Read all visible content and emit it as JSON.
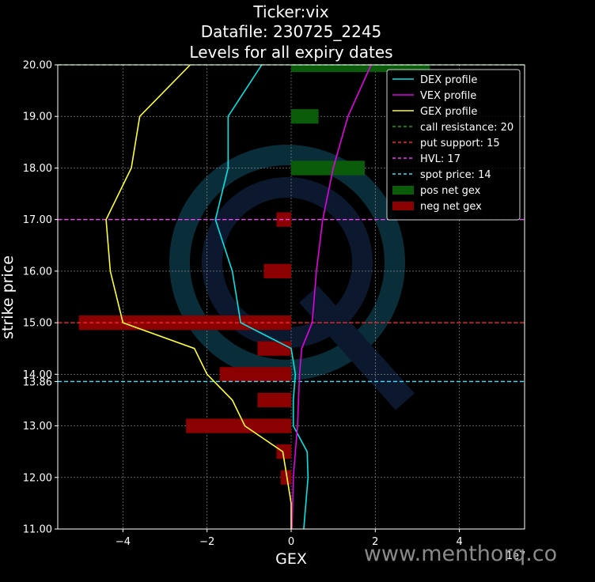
{
  "chart_data": {
    "type": "line",
    "title_lines": [
      "Ticker:vix",
      "Datafile: 230725_2245",
      "Levels for all expiry dates"
    ],
    "xlabel": "GEX",
    "ylabel": "strike price",
    "x_offset_label": "1e7",
    "xlim": [
      -5.55,
      5.55
    ],
    "ylim": [
      11.0,
      20.0
    ],
    "x_ticks": [
      -4,
      -2,
      0,
      2,
      4
    ],
    "x_tick_labels": [
      "−4",
      "−2",
      "0",
      "2",
      "4"
    ],
    "y_ticks": [
      11,
      12,
      13,
      14,
      15,
      16,
      17,
      18,
      19,
      20
    ],
    "y_tick_labels": [
      "11.00",
      "12.00",
      "13.00",
      "14.00",
      "15.00",
      "16.00",
      "17.00",
      "18.00",
      "19.00",
      "20.00"
    ],
    "extra_y_tick": {
      "value": 13.86,
      "label": "13.86"
    },
    "grid": true,
    "legend_position": "top-right",
    "colors": {
      "dex": "#00e5e5",
      "vex": "#e600e6",
      "gex": "#ffff33",
      "pos": "#0a5c0a",
      "neg": "#8b0000",
      "call": "#1aa31a",
      "put": "#ff2222",
      "hvl": "#ff33ff",
      "spot": "#33e5ff"
    },
    "series": [
      {
        "name": "DEX profile",
        "key": "dex",
        "points": [
          [
            -0.7,
            20.0
          ],
          [
            -1.5,
            19.0
          ],
          [
            -1.5,
            18.0
          ],
          [
            -1.8,
            17.0
          ],
          [
            -1.4,
            16.0
          ],
          [
            -1.2,
            15.0
          ],
          [
            0.0,
            14.5
          ],
          [
            0.1,
            14.0
          ],
          [
            0.05,
            13.5
          ],
          [
            0.05,
            13.0
          ],
          [
            0.38,
            12.5
          ],
          [
            0.4,
            12.0
          ],
          [
            0.35,
            11.5
          ],
          [
            0.3,
            11.0
          ]
        ]
      },
      {
        "name": "VEX profile",
        "key": "vex",
        "points": [
          [
            1.9,
            20.0
          ],
          [
            1.35,
            19.0
          ],
          [
            1.0,
            18.0
          ],
          [
            0.75,
            17.0
          ],
          [
            0.6,
            16.0
          ],
          [
            0.5,
            15.0
          ],
          [
            0.25,
            14.5
          ],
          [
            0.2,
            14.0
          ],
          [
            0.15,
            13.0
          ],
          [
            0.05,
            12.0
          ],
          [
            0.02,
            11.0
          ]
        ]
      },
      {
        "name": "GEX profile",
        "key": "gex",
        "points": [
          [
            -2.4,
            20.0
          ],
          [
            -3.6,
            19.0
          ],
          [
            -3.8,
            18.0
          ],
          [
            -4.4,
            17.0
          ],
          [
            -4.3,
            16.0
          ],
          [
            -4.0,
            15.0
          ],
          [
            -2.3,
            14.5
          ],
          [
            -2.0,
            14.0
          ],
          [
            -1.4,
            13.5
          ],
          [
            -1.1,
            13.0
          ],
          [
            -0.2,
            12.5
          ],
          [
            -0.1,
            12.0
          ],
          [
            0.0,
            11.5
          ],
          [
            0.0,
            11.0
          ]
        ]
      }
    ],
    "hlines": [
      {
        "name": "call resistance: 20",
        "key": "call",
        "y": 20.0
      },
      {
        "name": "put support: 15",
        "key": "put",
        "y": 15.0
      },
      {
        "name": "HVL: 17",
        "key": "hvl",
        "y": 17.0
      },
      {
        "name": "spot price: 14",
        "key": "spot",
        "y": 13.86
      }
    ],
    "pos_bars": {
      "name": "pos net gex",
      "strikes": [
        20.0,
        19.0,
        18.0
      ],
      "values": [
        3.3,
        0.65,
        1.75
      ]
    },
    "neg_bars": {
      "name": "neg net gex",
      "strikes": [
        17.0,
        16.0,
        15.0,
        14.5,
        14.0,
        13.5,
        13.0,
        12.5,
        12.0
      ],
      "values": [
        -0.35,
        -0.65,
        -5.05,
        -0.8,
        -1.7,
        -0.8,
        -2.5,
        -0.35,
        -0.25
      ]
    }
  },
  "watermark": {
    "text": "www.menthorq.co"
  }
}
